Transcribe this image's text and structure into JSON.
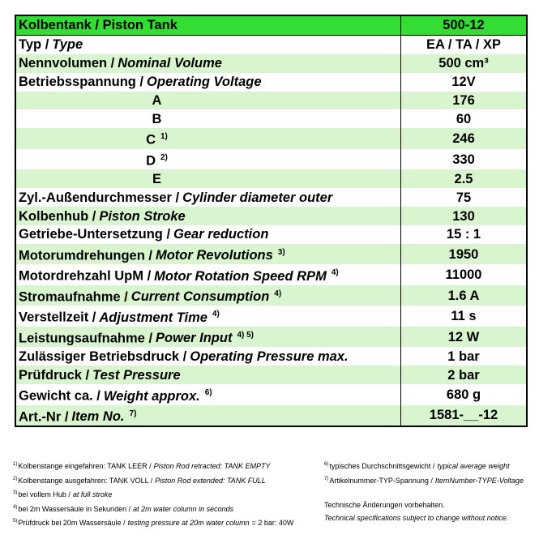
{
  "table": {
    "header": {
      "label": "Kolbentank / Piston Tank",
      "value": "500-12"
    },
    "rows": [
      {
        "de": "Typ /",
        "en": "Type",
        "value": "EA / TA / XP"
      },
      {
        "de": "Nennvolumen /",
        "en": "Nominal Volume",
        "value": "500 cm³"
      },
      {
        "de": "Betriebsspannung /",
        "en": "Operating Voltage",
        "value": "12V"
      },
      {
        "label": "A",
        "value": "176"
      },
      {
        "label": "B",
        "value": "60"
      },
      {
        "label": "C",
        "note": "1)",
        "value": "246"
      },
      {
        "label": "D",
        "note": "2)",
        "value": "330"
      },
      {
        "label": "E",
        "value": "2.5"
      },
      {
        "de": "Zyl.-Außendurchmesser /",
        "en": "Cylinder diameter outer",
        "value": "75"
      },
      {
        "de": "Kolbenhub /",
        "en": "Piston Stroke",
        "value": "130"
      },
      {
        "de": "Getriebe-Untersetzung /",
        "en": "Gear reduction",
        "value": "15 : 1"
      },
      {
        "de": "Motorumdrehungen /",
        "en": "Motor Revolutions",
        "note": "3)",
        "value": "1950"
      },
      {
        "de": "Motordrehzahl UpM /",
        "en": "Motor Rotation Speed RPM",
        "note": "4)",
        "value": "11000"
      },
      {
        "de": "Stromaufnahme /",
        "en": "Current Consumption",
        "note": "4)",
        "value": "1.6 A"
      },
      {
        "de": "Verstellzeit /",
        "en": "Adjustment Time",
        "note": "4)",
        "value": "11 s"
      },
      {
        "de": "Leistungsaufnahme /",
        "en": "Power Input",
        "note": "4) 5)",
        "value": "12 W"
      },
      {
        "de": "Zulässiger Betriebsdruck /",
        "en": "Operating Pressure max.",
        "value": "1 bar"
      },
      {
        "de": "Prüfdruck /",
        "en": "Test Pressure",
        "value": "2 bar"
      },
      {
        "de": "Gewicht ca. /",
        "en": "Weight approx.",
        "note": "6)",
        "value": "680 g"
      },
      {
        "de": "Art.-Nr /",
        "en": "Item No.",
        "note": "7)",
        "value": "1581-__-12"
      }
    ]
  },
  "footnotes": {
    "left": [
      {
        "ref": "1)",
        "de": "Kolbenstange eingefahren: TANK LEER /",
        "en": "Piston Rod retracted: TANK EMPTY"
      },
      {
        "ref": "2)",
        "de": "Kolbenstange ausgefahren: TANK VOLL /",
        "en": "Piston Rod extended: TANK FULL"
      },
      {
        "ref": "3)",
        "de": "bei vollem Hub /",
        "en": "at full stroke"
      },
      {
        "ref": "4)",
        "de": "bei 2m Wassersäule in Sekunden /",
        "en": "at 2m water column in seconds"
      },
      {
        "ref": "5)",
        "de": "Prüfdruck bei 20m Wassersäule /",
        "en": "testing pressure at 20m water column",
        "tail": "= 2 bar: 40W"
      }
    ],
    "right": [
      {
        "ref": "6)",
        "de": "typisches Durchschnittsgewicht /",
        "en": "typical average weight"
      },
      {
        "ref": "7)",
        "de": "Artikelnummer-TYP-Spannung /",
        "en": "ItemNumber-TYPE-Voltage"
      }
    ],
    "notice_de": "Technische Änderungen vorbehalten.",
    "notice_en": "Technical specifications subject to change without notice."
  }
}
